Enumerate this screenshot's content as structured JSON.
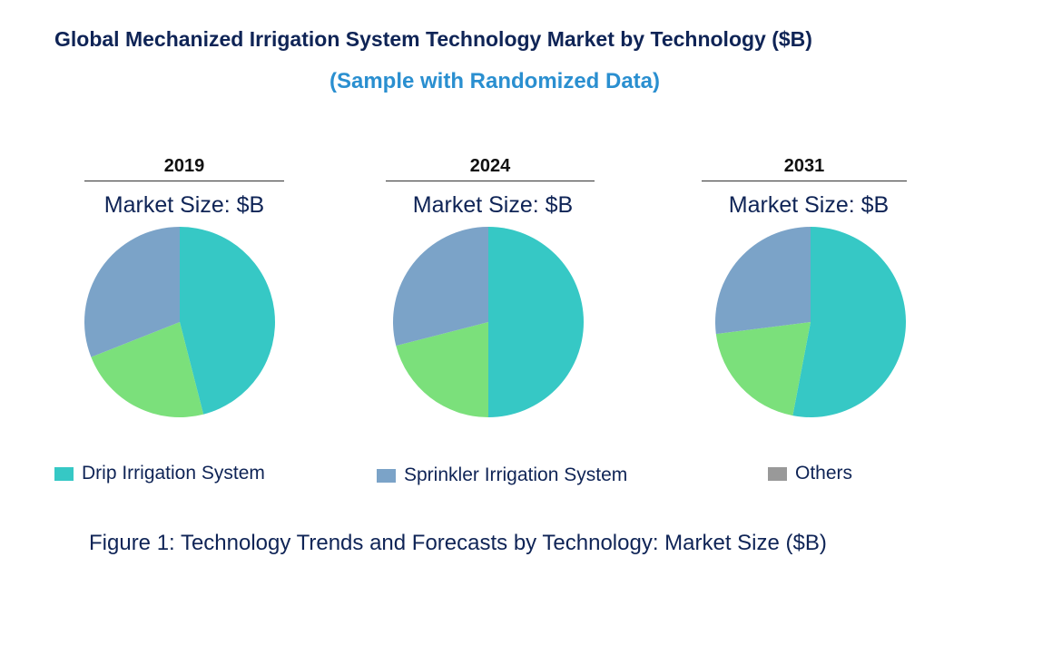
{
  "title": "Global Mechanized Irrigation System Technology Market by Technology ($B)",
  "subtitle": "(Sample with Randomized Data)",
  "caption": "Figure 1: Technology Trends and Forecasts by Technology: Market Size ($B)",
  "chart_data": {
    "type": "pie",
    "legend": [
      {
        "name": "Drip Irrigation System",
        "color": "#36C8C5"
      },
      {
        "name": "Sprinkler Irrigation System",
        "color": "#7BA3C8"
      },
      {
        "name": "Others",
        "color": "#999999"
      }
    ],
    "legend_position": "bottom",
    "charts": [
      {
        "year": "2019",
        "label": "Market Size: $B",
        "slices": [
          {
            "color": "#36C8C5",
            "value": 46
          },
          {
            "color": "#7BE07B",
            "value": 23
          },
          {
            "color": "#7BA3C8",
            "value": 31
          }
        ]
      },
      {
        "year": "2024",
        "label": "Market Size: $B",
        "slices": [
          {
            "color": "#36C8C5",
            "value": 50
          },
          {
            "color": "#7BE07B",
            "value": 21
          },
          {
            "color": "#7BA3C8",
            "value": 29
          }
        ]
      },
      {
        "year": "2031",
        "label": "Market Size: $B",
        "slices": [
          {
            "color": "#36C8C5",
            "value": 53
          },
          {
            "color": "#7BE07B",
            "value": 20
          },
          {
            "color": "#7BA3C8",
            "value": 27
          }
        ]
      }
    ]
  }
}
